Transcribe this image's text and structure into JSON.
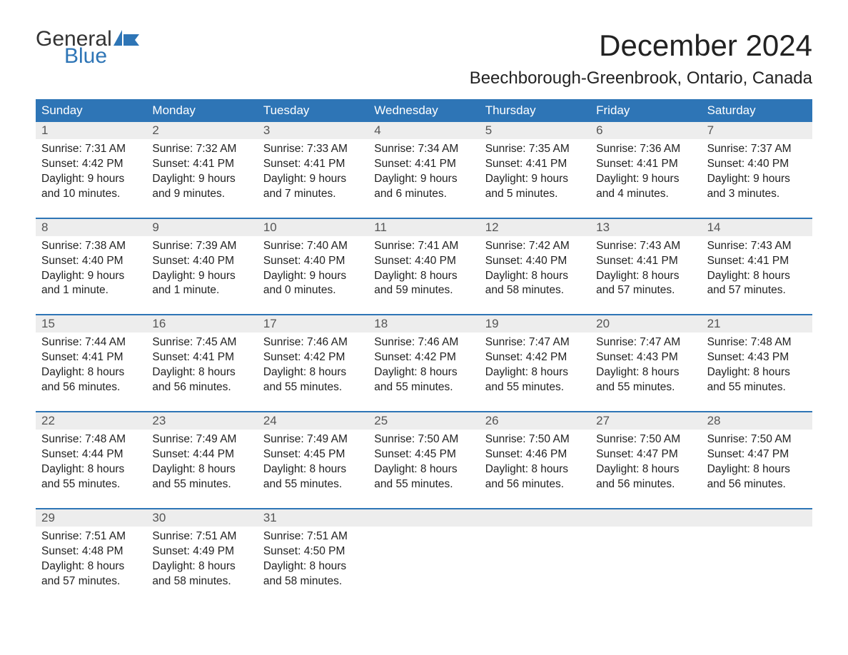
{
  "logo": {
    "text_general": "General",
    "text_blue": "Blue",
    "flag_color": "#2e75b6",
    "general_color": "#333333",
    "blue_color": "#2e75b6"
  },
  "header": {
    "month_title": "December 2024",
    "location": "Beechborough-Greenbrook, Ontario, Canada"
  },
  "styling": {
    "header_bg": "#2e75b6",
    "header_text": "#ffffff",
    "daynum_bg": "#ededed",
    "daynum_text": "#555555",
    "body_text": "#222222",
    "week_border": "#2e75b6",
    "background": "#ffffff",
    "font_family": "Arial",
    "month_title_fontsize": 42,
    "location_fontsize": 24,
    "weekday_fontsize": 17,
    "content_fontsize": 15.5
  },
  "weekdays": [
    "Sunday",
    "Monday",
    "Tuesday",
    "Wednesday",
    "Thursday",
    "Friday",
    "Saturday"
  ],
  "weeks": [
    {
      "days": [
        {
          "num": "1",
          "sunrise": "Sunrise: 7:31 AM",
          "sunset": "Sunset: 4:42 PM",
          "daylight1": "Daylight: 9 hours",
          "daylight2": "and 10 minutes."
        },
        {
          "num": "2",
          "sunrise": "Sunrise: 7:32 AM",
          "sunset": "Sunset: 4:41 PM",
          "daylight1": "Daylight: 9 hours",
          "daylight2": "and 9 minutes."
        },
        {
          "num": "3",
          "sunrise": "Sunrise: 7:33 AM",
          "sunset": "Sunset: 4:41 PM",
          "daylight1": "Daylight: 9 hours",
          "daylight2": "and 7 minutes."
        },
        {
          "num": "4",
          "sunrise": "Sunrise: 7:34 AM",
          "sunset": "Sunset: 4:41 PM",
          "daylight1": "Daylight: 9 hours",
          "daylight2": "and 6 minutes."
        },
        {
          "num": "5",
          "sunrise": "Sunrise: 7:35 AM",
          "sunset": "Sunset: 4:41 PM",
          "daylight1": "Daylight: 9 hours",
          "daylight2": "and 5 minutes."
        },
        {
          "num": "6",
          "sunrise": "Sunrise: 7:36 AM",
          "sunset": "Sunset: 4:41 PM",
          "daylight1": "Daylight: 9 hours",
          "daylight2": "and 4 minutes."
        },
        {
          "num": "7",
          "sunrise": "Sunrise: 7:37 AM",
          "sunset": "Sunset: 4:40 PM",
          "daylight1": "Daylight: 9 hours",
          "daylight2": "and 3 minutes."
        }
      ]
    },
    {
      "days": [
        {
          "num": "8",
          "sunrise": "Sunrise: 7:38 AM",
          "sunset": "Sunset: 4:40 PM",
          "daylight1": "Daylight: 9 hours",
          "daylight2": "and 1 minute."
        },
        {
          "num": "9",
          "sunrise": "Sunrise: 7:39 AM",
          "sunset": "Sunset: 4:40 PM",
          "daylight1": "Daylight: 9 hours",
          "daylight2": "and 1 minute."
        },
        {
          "num": "10",
          "sunrise": "Sunrise: 7:40 AM",
          "sunset": "Sunset: 4:40 PM",
          "daylight1": "Daylight: 9 hours",
          "daylight2": "and 0 minutes."
        },
        {
          "num": "11",
          "sunrise": "Sunrise: 7:41 AM",
          "sunset": "Sunset: 4:40 PM",
          "daylight1": "Daylight: 8 hours",
          "daylight2": "and 59 minutes."
        },
        {
          "num": "12",
          "sunrise": "Sunrise: 7:42 AM",
          "sunset": "Sunset: 4:40 PM",
          "daylight1": "Daylight: 8 hours",
          "daylight2": "and 58 minutes."
        },
        {
          "num": "13",
          "sunrise": "Sunrise: 7:43 AM",
          "sunset": "Sunset: 4:41 PM",
          "daylight1": "Daylight: 8 hours",
          "daylight2": "and 57 minutes."
        },
        {
          "num": "14",
          "sunrise": "Sunrise: 7:43 AM",
          "sunset": "Sunset: 4:41 PM",
          "daylight1": "Daylight: 8 hours",
          "daylight2": "and 57 minutes."
        }
      ]
    },
    {
      "days": [
        {
          "num": "15",
          "sunrise": "Sunrise: 7:44 AM",
          "sunset": "Sunset: 4:41 PM",
          "daylight1": "Daylight: 8 hours",
          "daylight2": "and 56 minutes."
        },
        {
          "num": "16",
          "sunrise": "Sunrise: 7:45 AM",
          "sunset": "Sunset: 4:41 PM",
          "daylight1": "Daylight: 8 hours",
          "daylight2": "and 56 minutes."
        },
        {
          "num": "17",
          "sunrise": "Sunrise: 7:46 AM",
          "sunset": "Sunset: 4:42 PM",
          "daylight1": "Daylight: 8 hours",
          "daylight2": "and 55 minutes."
        },
        {
          "num": "18",
          "sunrise": "Sunrise: 7:46 AM",
          "sunset": "Sunset: 4:42 PM",
          "daylight1": "Daylight: 8 hours",
          "daylight2": "and 55 minutes."
        },
        {
          "num": "19",
          "sunrise": "Sunrise: 7:47 AM",
          "sunset": "Sunset: 4:42 PM",
          "daylight1": "Daylight: 8 hours",
          "daylight2": "and 55 minutes."
        },
        {
          "num": "20",
          "sunrise": "Sunrise: 7:47 AM",
          "sunset": "Sunset: 4:43 PM",
          "daylight1": "Daylight: 8 hours",
          "daylight2": "and 55 minutes."
        },
        {
          "num": "21",
          "sunrise": "Sunrise: 7:48 AM",
          "sunset": "Sunset: 4:43 PM",
          "daylight1": "Daylight: 8 hours",
          "daylight2": "and 55 minutes."
        }
      ]
    },
    {
      "days": [
        {
          "num": "22",
          "sunrise": "Sunrise: 7:48 AM",
          "sunset": "Sunset: 4:44 PM",
          "daylight1": "Daylight: 8 hours",
          "daylight2": "and 55 minutes."
        },
        {
          "num": "23",
          "sunrise": "Sunrise: 7:49 AM",
          "sunset": "Sunset: 4:44 PM",
          "daylight1": "Daylight: 8 hours",
          "daylight2": "and 55 minutes."
        },
        {
          "num": "24",
          "sunrise": "Sunrise: 7:49 AM",
          "sunset": "Sunset: 4:45 PM",
          "daylight1": "Daylight: 8 hours",
          "daylight2": "and 55 minutes."
        },
        {
          "num": "25",
          "sunrise": "Sunrise: 7:50 AM",
          "sunset": "Sunset: 4:45 PM",
          "daylight1": "Daylight: 8 hours",
          "daylight2": "and 55 minutes."
        },
        {
          "num": "26",
          "sunrise": "Sunrise: 7:50 AM",
          "sunset": "Sunset: 4:46 PM",
          "daylight1": "Daylight: 8 hours",
          "daylight2": "and 56 minutes."
        },
        {
          "num": "27",
          "sunrise": "Sunrise: 7:50 AM",
          "sunset": "Sunset: 4:47 PM",
          "daylight1": "Daylight: 8 hours",
          "daylight2": "and 56 minutes."
        },
        {
          "num": "28",
          "sunrise": "Sunrise: 7:50 AM",
          "sunset": "Sunset: 4:47 PM",
          "daylight1": "Daylight: 8 hours",
          "daylight2": "and 56 minutes."
        }
      ]
    },
    {
      "days": [
        {
          "num": "29",
          "sunrise": "Sunrise: 7:51 AM",
          "sunset": "Sunset: 4:48 PM",
          "daylight1": "Daylight: 8 hours",
          "daylight2": "and 57 minutes."
        },
        {
          "num": "30",
          "sunrise": "Sunrise: 7:51 AM",
          "sunset": "Sunset: 4:49 PM",
          "daylight1": "Daylight: 8 hours",
          "daylight2": "and 58 minutes."
        },
        {
          "num": "31",
          "sunrise": "Sunrise: 7:51 AM",
          "sunset": "Sunset: 4:50 PM",
          "daylight1": "Daylight: 8 hours",
          "daylight2": "and 58 minutes."
        },
        {
          "empty": true
        },
        {
          "empty": true
        },
        {
          "empty": true
        },
        {
          "empty": true
        }
      ]
    }
  ]
}
